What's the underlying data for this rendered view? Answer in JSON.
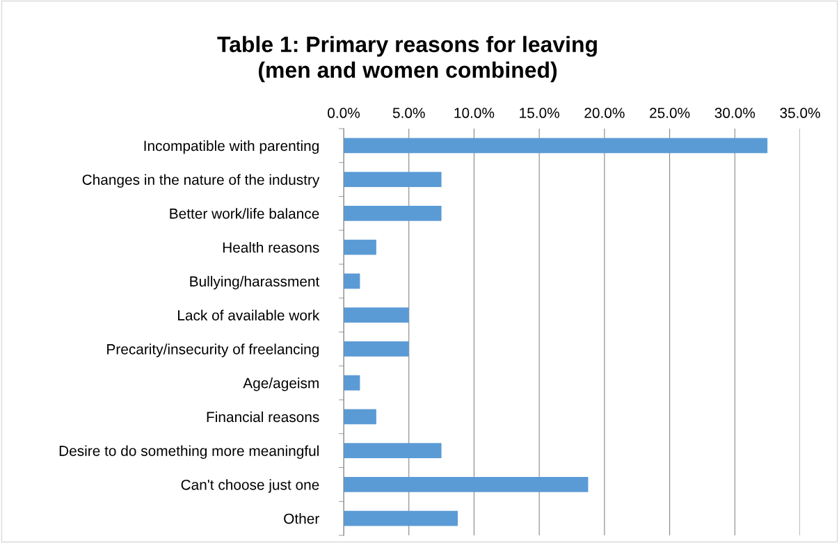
{
  "chart_data": {
    "type": "bar",
    "orientation": "horizontal",
    "title": "Table 1: Primary reasons for leaving\n(men and women combined)",
    "categories": [
      "Incompatible with parenting",
      "Changes in the nature of the industry",
      "Better work/life balance",
      "Health reasons",
      "Bullying/harassment",
      "Lack of available work",
      "Precarity/insecurity of freelancing",
      "Age/ageism",
      "Financial reasons",
      "Desire to do something more meaningful",
      "Can't choose just one",
      "Other"
    ],
    "values": [
      32.5,
      7.5,
      7.5,
      2.5,
      1.25,
      5.0,
      5.0,
      1.25,
      2.5,
      7.5,
      18.75,
      8.75
    ],
    "color": "#5b9bd5",
    "xlim": [
      0,
      35
    ],
    "xticks": [
      {
        "value": 0,
        "label": "0.0%"
      },
      {
        "value": 5,
        "label": "5.0%"
      },
      {
        "value": 10,
        "label": "10.0%"
      },
      {
        "value": 15,
        "label": "15.0%"
      },
      {
        "value": 20,
        "label": "20.0%"
      },
      {
        "value": 25,
        "label": "25.0%"
      },
      {
        "value": 30,
        "label": "30.0%"
      },
      {
        "value": 35,
        "label": "35.0%"
      }
    ],
    "grid": "x",
    "legend": false
  }
}
